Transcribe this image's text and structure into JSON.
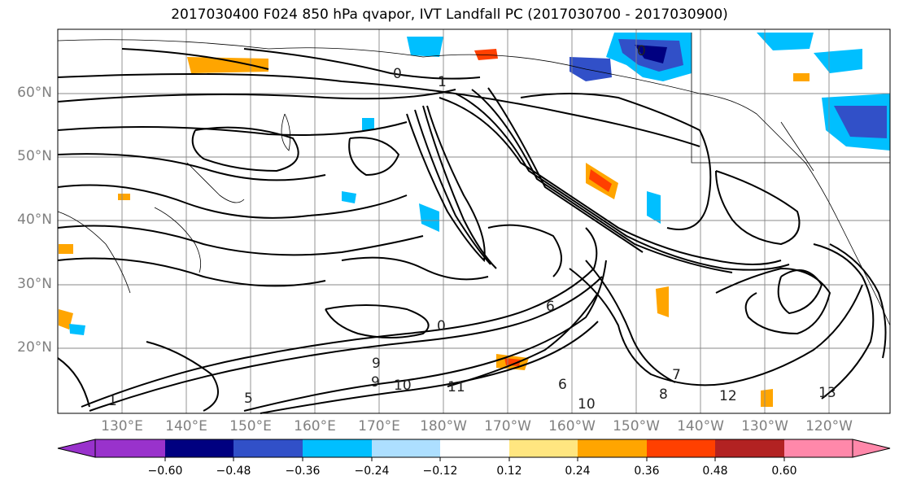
{
  "title": "2017030400 F024 850 hPa qvapor, IVT Landfall PC (2017030700 - 2017030900)",
  "map": {
    "lat_labels": [
      "60°N",
      "50°N",
      "40°N",
      "30°N",
      "20°N"
    ],
    "lon_labels": [
      "130°E",
      "140°E",
      "150°E",
      "160°E",
      "170°E",
      "180°W",
      "170°W",
      "160°W",
      "150°W",
      "140°W",
      "130°W",
      "120°W"
    ],
    "contour_labels": [
      "0",
      "0",
      "1",
      "6",
      "0",
      "9",
      "9",
      "10",
      "11",
      "1",
      "5",
      "10",
      "12",
      "13",
      "7",
      "8",
      "6"
    ],
    "grid": true
  },
  "colorbar": {
    "ticks": [
      "−0.60",
      "−0.48",
      "−0.36",
      "−0.24",
      "−0.12",
      "0.12",
      "0.24",
      "0.36",
      "0.48",
      "0.60"
    ],
    "colors": [
      "#9932CC",
      "#000080",
      "#3150C8",
      "#00BFFF",
      "#ADDFFF",
      "#FFFFFF",
      "#FFE680",
      "#FFA500",
      "#FF4000",
      "#B22222",
      "#FF88AA"
    ]
  }
}
